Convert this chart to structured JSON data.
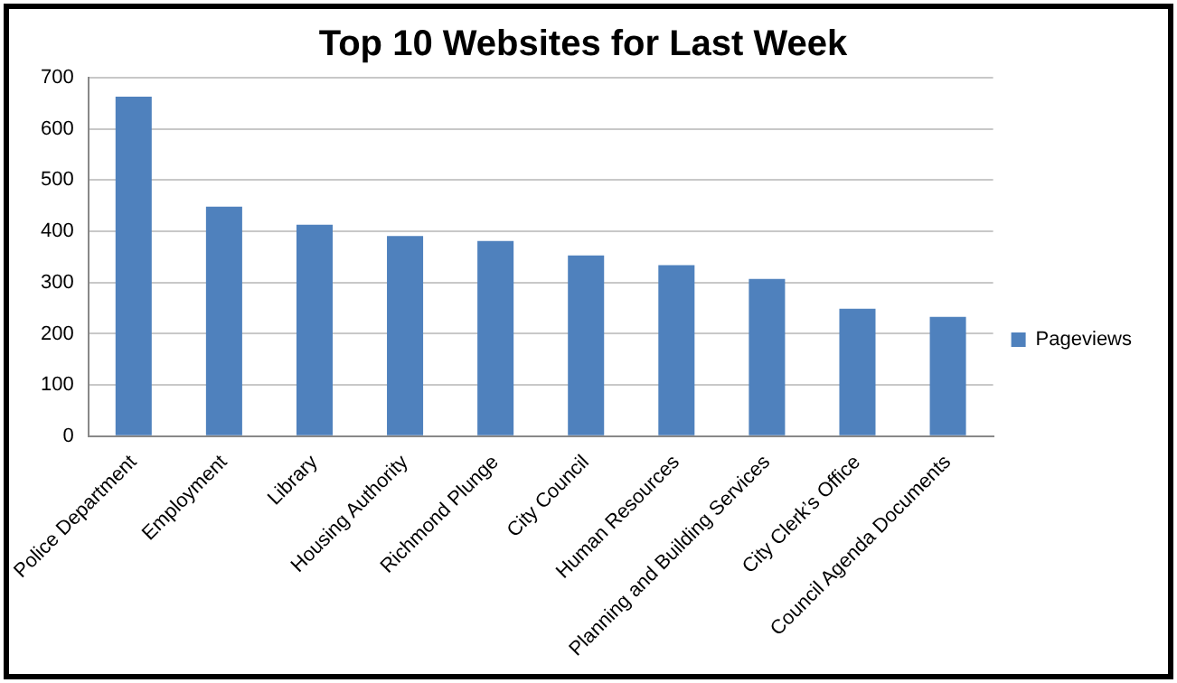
{
  "chart_data": {
    "type": "bar",
    "title": "Top 10 Websites for Last Week",
    "categories": [
      "Police Department",
      "Employment",
      "Library",
      "Housing Authority",
      "Richmond Plunge",
      "City Council",
      "Human Resources",
      "Planning and Building Services",
      "City Clerk’s Office",
      "Council Agenda Documents"
    ],
    "series": [
      {
        "name": "Pageviews",
        "color": "#4f81bd",
        "values": [
          663,
          448,
          413,
          391,
          381,
          353,
          334,
          307,
          249,
          233
        ]
      }
    ],
    "ylim": [
      0,
      700
    ],
    "yticks": [
      0,
      100,
      200,
      300,
      400,
      500,
      600,
      700
    ],
    "grid": "y",
    "legend": "right"
  }
}
